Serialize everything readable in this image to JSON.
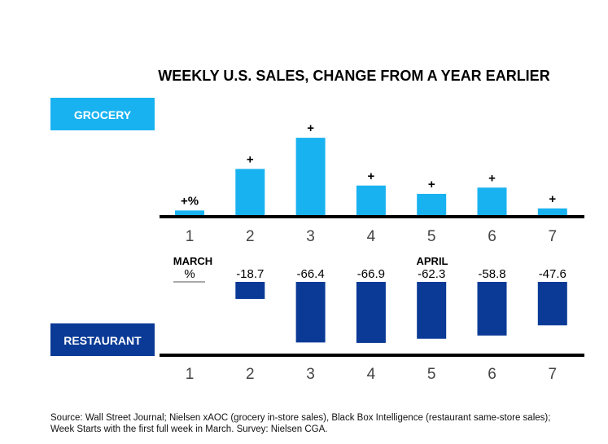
{
  "colors": {
    "grocery": "#19B2F0",
    "restaurant": "#0A3A96",
    "axis": "#000000",
    "tick": "#444444"
  },
  "source_line1": "Source: Wall Street Journal; Nielsen xAOC (grocery in-store sales), Black Box Intelligence (restaurant same-store sales);",
  "source_line2": "Week Starts with the first full week in March.  Survey: Nielsen CGA.",
  "chart_data": {
    "type": "bar",
    "title": "WEEKLY U.S. SALES, CHANGE FROM A YEAR EARLIER",
    "categories": [
      "1",
      "2",
      "3",
      "4",
      "5",
      "6",
      "7"
    ],
    "month_labels": [
      {
        "text": "MARCH",
        "week": "1"
      },
      {
        "text": "APRIL",
        "week": "5"
      }
    ],
    "series": [
      {
        "name": "GROCERY",
        "values": [
          3,
          23,
          38,
          15,
          11,
          14,
          4
        ],
        "labels": [
          "+%",
          "+",
          "+",
          "+",
          "+",
          "+",
          "+"
        ]
      },
      {
        "name": "RESTAURANT",
        "values": [
          0,
          -18.7,
          -66.4,
          -66.9,
          -62.3,
          -58.8,
          -47.6
        ],
        "labels": [
          "%",
          "-18.7",
          "-66.4",
          "-66.9",
          "-62.3",
          "-58.8",
          "-47.6"
        ]
      }
    ],
    "xlabel": "",
    "ylabel": "%"
  }
}
